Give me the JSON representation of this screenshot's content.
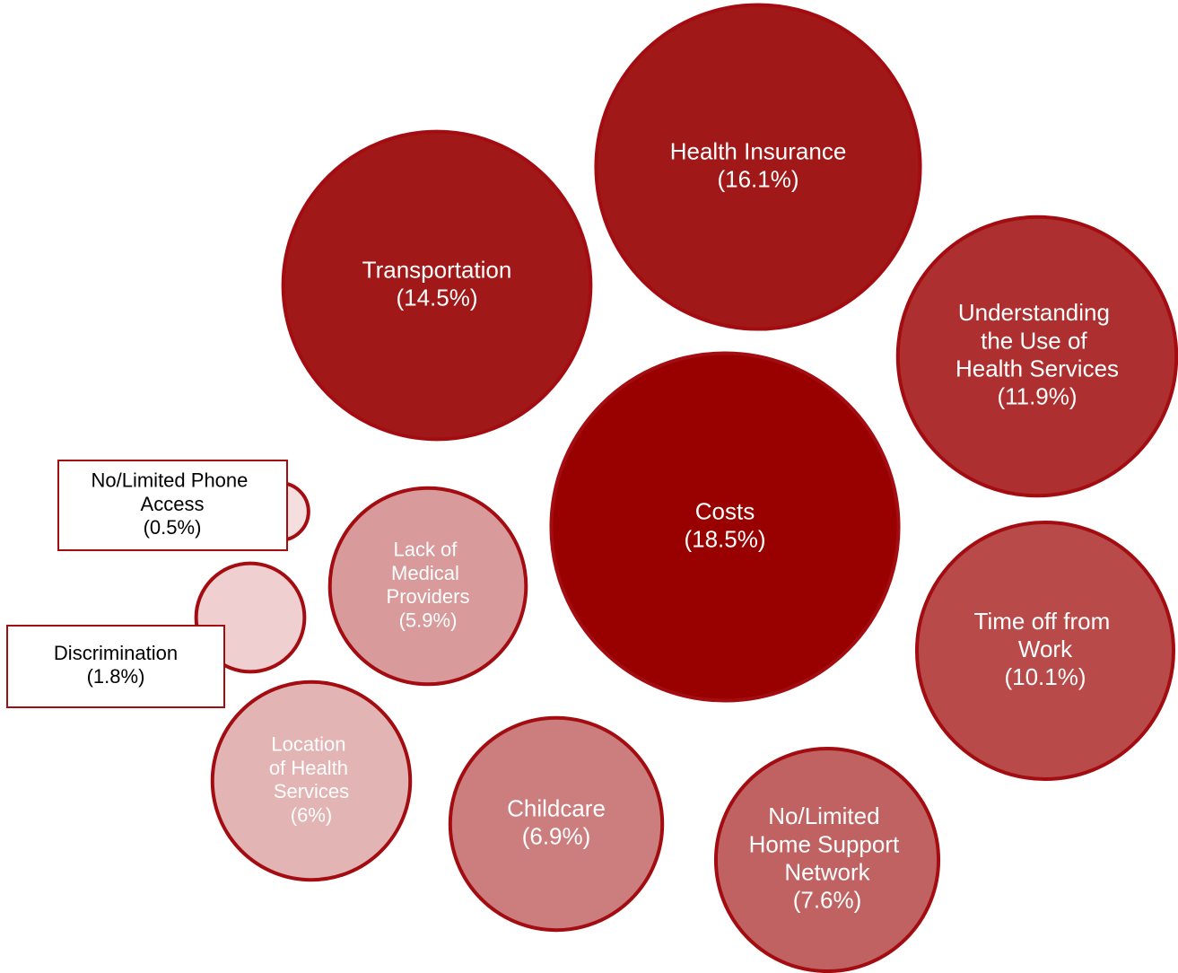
{
  "chart_data": {
    "type": "bubble",
    "categories": [
      "Costs",
      "Health Insurance",
      "Transportation",
      "Understanding the Use of Health Services",
      "Time off from Work",
      "No/Limited Home Support Network",
      "Childcare",
      "Lack of Medical Providers",
      "Location of Health Services",
      "Discrimination",
      "No/Limited Phone Access"
    ],
    "values": [
      18.5,
      16.1,
      14.5,
      11.9,
      10.1,
      7.6,
      6.9,
      5.9,
      6,
      1.8,
      0.5
    ],
    "value_labels": [
      "(18.5%)",
      "(16.1%)",
      "(14.5%)",
      "(11.9%)",
      "(10.1%)",
      "(7.6%)",
      "(6.9%)",
      "(5.9%)",
      "(6%)",
      "(1.8%)",
      "(0.5%)"
    ],
    "colors": [
      "#990000",
      "#a11818",
      "#a11818",
      "#ad2f2f",
      "#b84a4a",
      "#c16262",
      "#cc7e7e",
      "#d89a9a",
      "#e2b4b4",
      "#efcfcf",
      "#f4dede"
    ]
  }
}
